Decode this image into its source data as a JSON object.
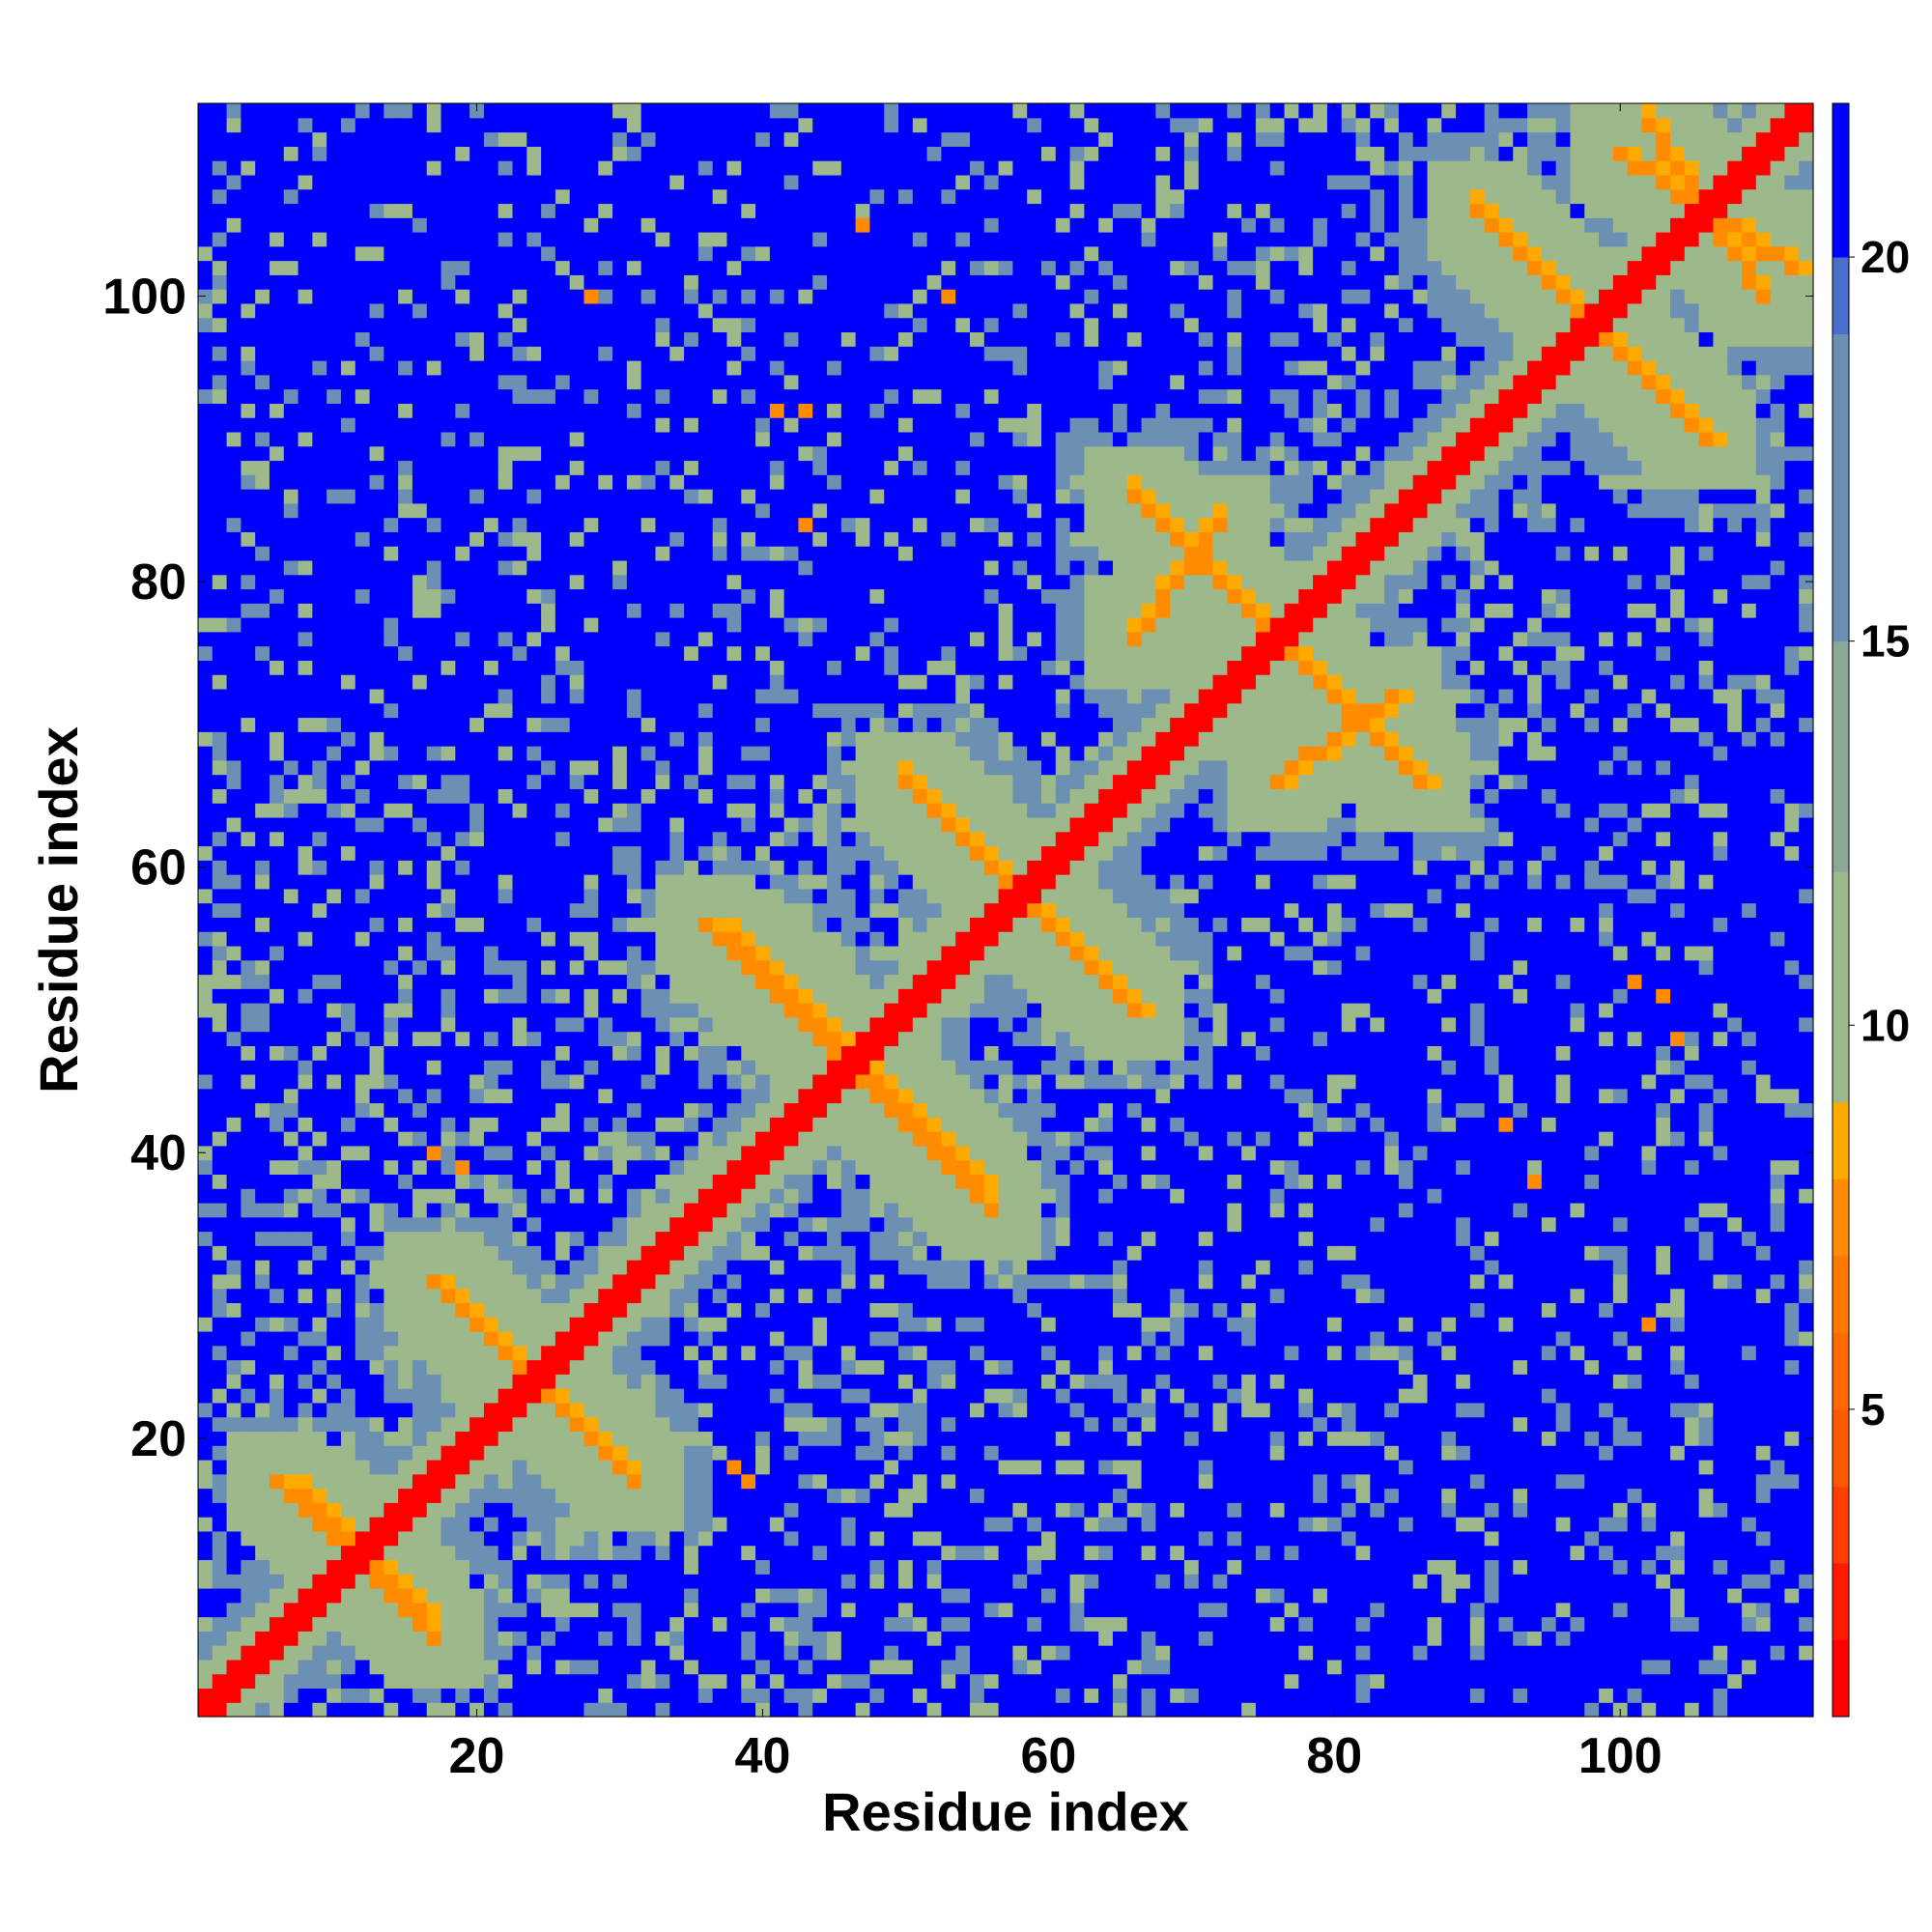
{
  "chart_data": {
    "type": "heatmap",
    "title": "",
    "xlabel": "Residue index",
    "ylabel": "Residue index",
    "n_residues": 113,
    "xlim": [
      1,
      113
    ],
    "ylim": [
      1,
      113
    ],
    "x_ticks": [
      20,
      40,
      60,
      80,
      100
    ],
    "y_ticks": [
      20,
      40,
      60,
      80,
      100
    ],
    "grid": false,
    "colorbar": {
      "placement": "right",
      "range": [
        1,
        22
      ],
      "ticks": [
        5,
        10,
        15,
        20
      ],
      "colors": {
        "very_close": "#ff0000",
        "close": "#ff4000",
        "contact": "#ff8c00",
        "near_contact": "#ffaa00",
        "mid": "#9db88a",
        "far": "#6b90b4",
        "background": "#0000ff"
      }
    },
    "features": {
      "diagonal_band_width": 1.8,
      "sheet_strands": [
        {
          "a": [
            6,
            16
          ],
          "b": [
            17,
            8
          ],
          "type": "antiparallel"
        },
        {
          "a": [
            17,
            30
          ],
          "b": [
            31,
            18
          ],
          "type": "antiparallel"
        },
        {
          "a": [
            36,
            55
          ],
          "b": [
            56,
            38
          ],
          "type": "antiparallel"
        },
        {
          "a": [
            50,
            66
          ],
          "b": [
            66,
            50
          ],
          "type": "antiparallel"
        },
        {
          "a": [
            66,
            86
          ],
          "b": [
            86,
            66
          ],
          "type": "antiparallel"
        },
        {
          "a": [
            76,
            84
          ],
          "b": [
            66,
            72
          ],
          "type": "antiparallel"
        },
        {
          "a": [
            90,
            106
          ],
          "b": [
            106,
            90
          ],
          "type": "antiparallel"
        },
        {
          "a": [
            100,
            112
          ],
          "b": [
            110,
            102
          ],
          "type": "antiparallel"
        }
      ],
      "hotspots": [
        [
          28,
          100,
          7
        ],
        [
          47,
          105,
          7
        ],
        [
          53,
          100,
          7
        ],
        [
          43,
          92,
          7
        ],
        [
          41,
          92,
          7
        ],
        [
          43,
          84,
          7
        ],
        [
          101,
          52,
          7
        ],
        [
          103,
          51,
          7
        ],
        [
          104,
          48,
          7
        ],
        [
          92,
          42,
          7
        ],
        [
          94,
          38,
          7
        ],
        [
          102,
          28,
          7
        ],
        [
          38,
          18,
          7
        ],
        [
          39,
          17,
          7
        ],
        [
          17,
          40,
          7
        ],
        [
          19,
          39,
          7
        ]
      ]
    }
  }
}
